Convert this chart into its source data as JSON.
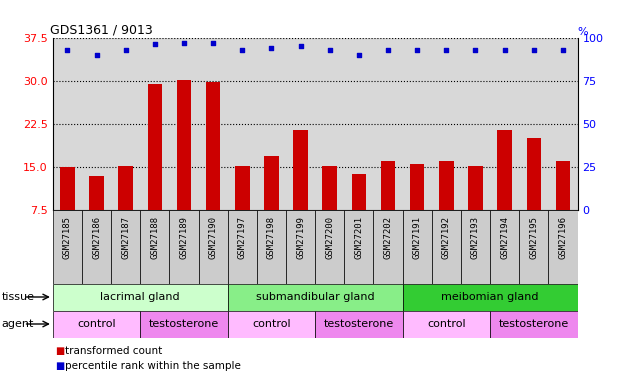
{
  "title": "GDS1361 / 9013",
  "samples": [
    "GSM27185",
    "GSM27186",
    "GSM27187",
    "GSM27188",
    "GSM27189",
    "GSM27190",
    "GSM27197",
    "GSM27198",
    "GSM27199",
    "GSM27200",
    "GSM27201",
    "GSM27202",
    "GSM27191",
    "GSM27192",
    "GSM27193",
    "GSM27194",
    "GSM27195",
    "GSM27196"
  ],
  "bar_values": [
    15.0,
    13.5,
    15.2,
    29.5,
    30.2,
    29.8,
    15.2,
    17.0,
    21.5,
    15.2,
    13.8,
    16.0,
    15.5,
    16.0,
    15.2,
    21.5,
    20.0,
    16.0
  ],
  "blue_dot_values": [
    93,
    90,
    93,
    96,
    97,
    97,
    93,
    94,
    95,
    93,
    90,
    93,
    93,
    93,
    93,
    93,
    93,
    93
  ],
  "bar_color": "#cc0000",
  "blue_dot_color": "#0000cc",
  "ylim_left": [
    7.5,
    37.5
  ],
  "ylim_right": [
    0,
    100
  ],
  "yticks_left": [
    7.5,
    15.0,
    22.5,
    30.0,
    37.5
  ],
  "yticks_right": [
    0,
    25,
    50,
    75,
    100
  ],
  "tissue_groups": [
    {
      "label": "lacrimal gland",
      "start": 0,
      "end": 6,
      "color": "#ccffcc"
    },
    {
      "label": "submandibular gland",
      "start": 6,
      "end": 12,
      "color": "#88ee88"
    },
    {
      "label": "meibomian gland",
      "start": 12,
      "end": 18,
      "color": "#33cc33"
    }
  ],
  "agent_groups": [
    {
      "label": "control",
      "start": 0,
      "end": 3,
      "color": "#ffbbff"
    },
    {
      "label": "testosterone",
      "start": 3,
      "end": 6,
      "color": "#ee88ee"
    },
    {
      "label": "control",
      "start": 6,
      "end": 9,
      "color": "#ffbbff"
    },
    {
      "label": "testosterone",
      "start": 9,
      "end": 12,
      "color": "#ee88ee"
    },
    {
      "label": "control",
      "start": 12,
      "end": 15,
      "color": "#ffbbff"
    },
    {
      "label": "testosterone",
      "start": 15,
      "end": 18,
      "color": "#ee88ee"
    }
  ],
  "legend_items": [
    {
      "label": "transformed count",
      "color": "#cc0000"
    },
    {
      "label": "percentile rank within the sample",
      "color": "#0000cc"
    }
  ],
  "tissue_label": "tissue",
  "agent_label": "agent",
  "plot_bg_color": "#d8d8d8",
  "xtick_bg_color": "#cccccc",
  "bar_width": 0.5
}
